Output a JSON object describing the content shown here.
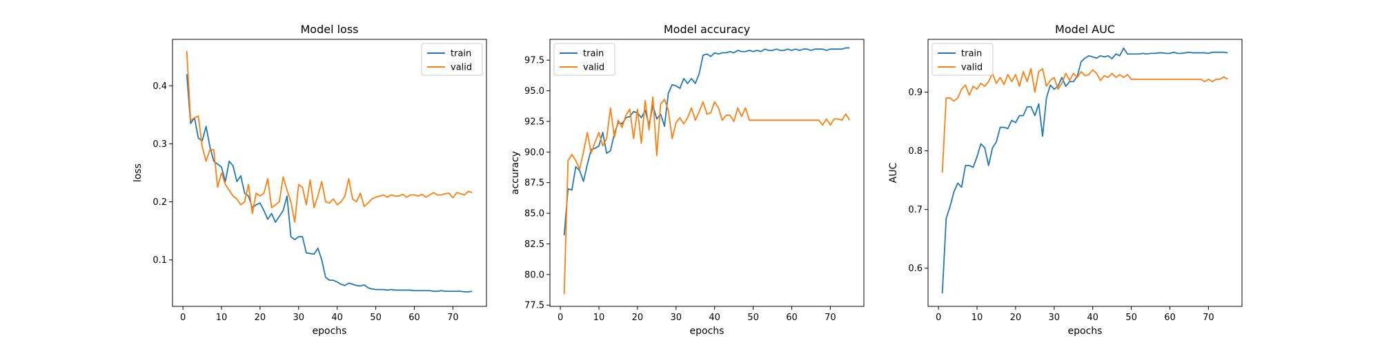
{
  "figure": {
    "background": "#ffffff"
  },
  "chart_data": [
    {
      "type": "line",
      "title": "Model loss",
      "xlabel": "epochs",
      "ylabel": "loss",
      "xlim": [
        -2.7,
        78.7
      ],
      "ylim": [
        0.02,
        0.48
      ],
      "xticks": [
        0,
        10,
        20,
        30,
        40,
        50,
        60,
        70
      ],
      "yticks": [
        0.1,
        0.2,
        0.3,
        0.4
      ],
      "ytick_labels": [
        "0.1",
        "0.2",
        "0.3",
        "0.4"
      ],
      "legend": "top-right",
      "grid": false,
      "series": [
        {
          "name": "train",
          "color": "#1f77b4",
          "x": [
            1,
            2,
            3,
            4,
            5,
            6,
            7,
            8,
            9,
            10,
            11,
            12,
            13,
            14,
            15,
            16,
            17,
            18,
            19,
            20,
            21,
            22,
            23,
            24,
            25,
            26,
            27,
            28,
            29,
            30,
            31,
            32,
            33,
            34,
            35,
            36,
            37,
            38,
            39,
            40,
            41,
            42,
            43,
            44,
            45,
            46,
            47,
            48,
            49,
            50,
            51,
            52,
            53,
            54,
            55,
            56,
            57,
            58,
            59,
            60,
            61,
            62,
            63,
            64,
            65,
            66,
            67,
            68,
            69,
            70,
            71,
            72,
            73,
            74,
            75
          ],
          "values": [
            0.42,
            0.335,
            0.345,
            0.31,
            0.305,
            0.33,
            0.295,
            0.27,
            0.265,
            0.26,
            0.235,
            0.27,
            0.262,
            0.235,
            0.245,
            0.215,
            0.21,
            0.19,
            0.195,
            0.198,
            0.185,
            0.17,
            0.18,
            0.165,
            0.175,
            0.185,
            0.21,
            0.14,
            0.135,
            0.14,
            0.14,
            0.112,
            0.111,
            0.11,
            0.12,
            0.1,
            0.07,
            0.065,
            0.065,
            0.062,
            0.058,
            0.056,
            0.06,
            0.058,
            0.056,
            0.055,
            0.057,
            0.052,
            0.05,
            0.049,
            0.049,
            0.049,
            0.048,
            0.049,
            0.048,
            0.048,
            0.048,
            0.048,
            0.048,
            0.047,
            0.047,
            0.047,
            0.047,
            0.047,
            0.046,
            0.046,
            0.047,
            0.046,
            0.046,
            0.046,
            0.046,
            0.046,
            0.045,
            0.045,
            0.046
          ]
        },
        {
          "name": "valid",
          "color": "#ff7f0e",
          "x": [
            1,
            2,
            3,
            4,
            5,
            6,
            7,
            8,
            9,
            10,
            11,
            12,
            13,
            14,
            15,
            16,
            17,
            18,
            19,
            20,
            21,
            22,
            23,
            24,
            25,
            26,
            27,
            28,
            29,
            30,
            31,
            32,
            33,
            34,
            35,
            36,
            37,
            38,
            39,
            40,
            41,
            42,
            43,
            44,
            45,
            46,
            47,
            48,
            49,
            50,
            51,
            52,
            53,
            54,
            55,
            56,
            57,
            58,
            59,
            60,
            61,
            62,
            63,
            64,
            65,
            66,
            67,
            68,
            69,
            70,
            71,
            72,
            73,
            74,
            75
          ],
          "values": [
            0.46,
            0.34,
            0.345,
            0.348,
            0.295,
            0.27,
            0.29,
            0.29,
            0.225,
            0.25,
            0.23,
            0.22,
            0.21,
            0.205,
            0.195,
            0.2,
            0.23,
            0.18,
            0.215,
            0.21,
            0.215,
            0.24,
            0.19,
            0.195,
            0.2,
            0.243,
            0.22,
            0.2,
            0.165,
            0.23,
            0.225,
            0.195,
            0.238,
            0.19,
            0.21,
            0.235,
            0.2,
            0.198,
            0.205,
            0.195,
            0.2,
            0.21,
            0.24,
            0.205,
            0.2,
            0.215,
            0.192,
            0.198,
            0.205,
            0.208,
            0.21,
            0.212,
            0.208,
            0.212,
            0.21,
            0.21,
            0.213,
            0.208,
            0.212,
            0.212,
            0.21,
            0.213,
            0.208,
            0.212,
            0.216,
            0.212,
            0.212,
            0.214,
            0.215,
            0.207,
            0.216,
            0.214,
            0.212,
            0.218,
            0.216
          ]
        }
      ]
    },
    {
      "type": "line",
      "title": "Model accuracy",
      "xlabel": "epochs",
      "ylabel": "accuracy",
      "xlim": [
        -2.7,
        78.7
      ],
      "ylim": [
        77.4,
        99.2
      ],
      "xticks": [
        0,
        10,
        20,
        30,
        40,
        50,
        60,
        70
      ],
      "yticks": [
        77.5,
        80.0,
        82.5,
        85.0,
        87.5,
        90.0,
        92.5,
        95.0,
        97.5
      ],
      "ytick_labels": [
        "77.5",
        "80.0",
        "82.5",
        "85.0",
        "87.5",
        "90.0",
        "92.5",
        "95.0",
        "97.5"
      ],
      "legend": "top-left",
      "grid": false,
      "series": [
        {
          "name": "train",
          "color": "#1f77b4",
          "x": [
            1,
            2,
            3,
            4,
            5,
            6,
            7,
            8,
            9,
            10,
            11,
            12,
            13,
            14,
            15,
            16,
            17,
            18,
            19,
            20,
            21,
            22,
            23,
            24,
            25,
            26,
            27,
            28,
            29,
            30,
            31,
            32,
            33,
            34,
            35,
            36,
            37,
            38,
            39,
            40,
            41,
            42,
            43,
            44,
            45,
            46,
            47,
            48,
            49,
            50,
            51,
            52,
            53,
            54,
            55,
            56,
            57,
            58,
            59,
            60,
            61,
            62,
            63,
            64,
            65,
            66,
            67,
            68,
            69,
            70,
            71,
            72,
            73,
            74,
            75
          ],
          "values": [
            83.2,
            87,
            86.9,
            88.8,
            88.5,
            87.6,
            89,
            90.2,
            90.3,
            90.5,
            91.6,
            89.9,
            90.1,
            91.5,
            92.4,
            92.3,
            92.8,
            92.9,
            93.3,
            93.2,
            92.8,
            93.4,
            92.2,
            93.8,
            92.7,
            93.1,
            92.1,
            94.8,
            95.5,
            95.4,
            95.2,
            96,
            95.6,
            96,
            95.6,
            96.4,
            97.9,
            98,
            97.8,
            98.1,
            98,
            98.1,
            98.1,
            98.2,
            98.1,
            98.3,
            98.2,
            98.2,
            98.3,
            98.2,
            98.3,
            98.2,
            98.4,
            98.3,
            98.3,
            98.4,
            98.3,
            98.3,
            98.4,
            98.3,
            98.4,
            98.3,
            98.4,
            98.4,
            98.3,
            98.4,
            98.4,
            98.4,
            98.3,
            98.4,
            98.4,
            98.4,
            98.4,
            98.5,
            98.5
          ]
        },
        {
          "name": "valid",
          "color": "#ff7f0e",
          "x": [
            1,
            2,
            3,
            4,
            5,
            6,
            7,
            8,
            9,
            10,
            11,
            12,
            13,
            14,
            15,
            16,
            17,
            18,
            19,
            20,
            21,
            22,
            23,
            24,
            25,
            26,
            27,
            28,
            29,
            30,
            31,
            32,
            33,
            34,
            35,
            36,
            37,
            38,
            39,
            40,
            41,
            42,
            43,
            44,
            45,
            46,
            47,
            48,
            49,
            50,
            51,
            52,
            53,
            54,
            55,
            56,
            57,
            58,
            59,
            60,
            61,
            62,
            63,
            64,
            65,
            66,
            67,
            68,
            69,
            70,
            71,
            72,
            73,
            74,
            75
          ],
          "values": [
            78.4,
            89.3,
            89.8,
            89.3,
            88.6,
            90,
            91.6,
            89.9,
            90.8,
            91.6,
            90.5,
            91.1,
            93.6,
            91.2,
            92.6,
            92,
            93,
            93.5,
            91.1,
            93.5,
            90.7,
            94.2,
            91.8,
            94.5,
            89.7,
            93.9,
            94.3,
            93.4,
            91.1,
            92.4,
            92.8,
            92.3,
            92.8,
            93.6,
            92.6,
            93.3,
            94.1,
            93.1,
            93.2,
            94.1,
            93.6,
            92.6,
            93,
            93,
            92.5,
            93.6,
            92.9,
            93.6,
            92.6,
            92.6,
            92.6,
            92.6,
            92.6,
            92.6,
            92.6,
            92.6,
            92.6,
            92.6,
            92.6,
            92.6,
            92.6,
            92.6,
            92.6,
            92.6,
            92.6,
            92.6,
            92.6,
            92.2,
            92.7,
            92.2,
            92.7,
            92.7,
            92.6,
            93.1,
            92.6
          ]
        }
      ]
    },
    {
      "type": "line",
      "title": "Model AUC",
      "xlabel": "epochs",
      "ylabel": "AUC",
      "xlim": [
        -2.7,
        78.7
      ],
      "ylim": [
        0.535,
        0.99
      ],
      "xticks": [
        0,
        10,
        20,
        30,
        40,
        50,
        60,
        70
      ],
      "yticks": [
        0.6,
        0.7,
        0.8,
        0.9
      ],
      "ytick_labels": [
        "0.6",
        "0.7",
        "0.8",
        "0.9"
      ],
      "legend": "top-left",
      "grid": false,
      "series": [
        {
          "name": "train",
          "color": "#1f77b4",
          "x": [
            1,
            2,
            3,
            4,
            5,
            6,
            7,
            8,
            9,
            10,
            11,
            12,
            13,
            14,
            15,
            16,
            17,
            18,
            19,
            20,
            21,
            22,
            23,
            24,
            25,
            26,
            27,
            28,
            29,
            30,
            31,
            32,
            33,
            34,
            35,
            36,
            37,
            38,
            39,
            40,
            41,
            42,
            43,
            44,
            45,
            46,
            47,
            48,
            49,
            50,
            51,
            52,
            53,
            54,
            55,
            56,
            57,
            58,
            59,
            60,
            61,
            62,
            63,
            64,
            65,
            66,
            67,
            68,
            69,
            70,
            71,
            72,
            73,
            74,
            75
          ],
          "values": [
            0.557,
            0.685,
            0.705,
            0.73,
            0.745,
            0.738,
            0.775,
            0.775,
            0.772,
            0.79,
            0.812,
            0.805,
            0.775,
            0.805,
            0.815,
            0.84,
            0.84,
            0.838,
            0.852,
            0.848,
            0.86,
            0.86,
            0.875,
            0.875,
            0.86,
            0.88,
            0.825,
            0.89,
            0.912,
            0.905,
            0.91,
            0.925,
            0.91,
            0.918,
            0.918,
            0.927,
            0.952,
            0.958,
            0.962,
            0.96,
            0.958,
            0.962,
            0.96,
            0.962,
            0.957,
            0.965,
            0.962,
            0.975,
            0.965,
            0.965,
            0.965,
            0.965,
            0.966,
            0.965,
            0.966,
            0.966,
            0.967,
            0.967,
            0.966,
            0.966,
            0.968,
            0.966,
            0.966,
            0.967,
            0.968,
            0.967,
            0.967,
            0.967,
            0.967,
            0.966,
            0.968,
            0.968,
            0.968,
            0.968,
            0.967
          ]
        },
        {
          "name": "valid",
          "color": "#ff7f0e",
          "x": [
            1,
            2,
            3,
            4,
            5,
            6,
            7,
            8,
            9,
            10,
            11,
            12,
            13,
            14,
            15,
            16,
            17,
            18,
            19,
            20,
            21,
            22,
            23,
            24,
            25,
            26,
            27,
            28,
            29,
            30,
            31,
            32,
            33,
            34,
            35,
            36,
            37,
            38,
            39,
            40,
            41,
            42,
            43,
            44,
            45,
            46,
            47,
            48,
            49,
            50,
            51,
            52,
            53,
            54,
            55,
            56,
            57,
            58,
            59,
            60,
            61,
            62,
            63,
            64,
            65,
            66,
            67,
            68,
            69,
            70,
            71,
            72,
            73,
            74,
            75
          ],
          "values": [
            0.763,
            0.89,
            0.89,
            0.885,
            0.89,
            0.905,
            0.912,
            0.895,
            0.91,
            0.905,
            0.915,
            0.91,
            0.918,
            0.932,
            0.915,
            0.925,
            0.913,
            0.93,
            0.918,
            0.93,
            0.91,
            0.935,
            0.918,
            0.94,
            0.9,
            0.935,
            0.94,
            0.91,
            0.92,
            0.925,
            0.905,
            0.915,
            0.932,
            0.92,
            0.932,
            0.925,
            0.935,
            0.928,
            0.93,
            0.938,
            0.932,
            0.92,
            0.928,
            0.925,
            0.932,
            0.925,
            0.93,
            0.925,
            0.93,
            0.922,
            0.922,
            0.922,
            0.922,
            0.922,
            0.922,
            0.922,
            0.922,
            0.922,
            0.922,
            0.922,
            0.922,
            0.922,
            0.922,
            0.922,
            0.922,
            0.922,
            0.922,
            0.922,
            0.918,
            0.922,
            0.918,
            0.922,
            0.922,
            0.926,
            0.922
          ]
        }
      ]
    }
  ]
}
